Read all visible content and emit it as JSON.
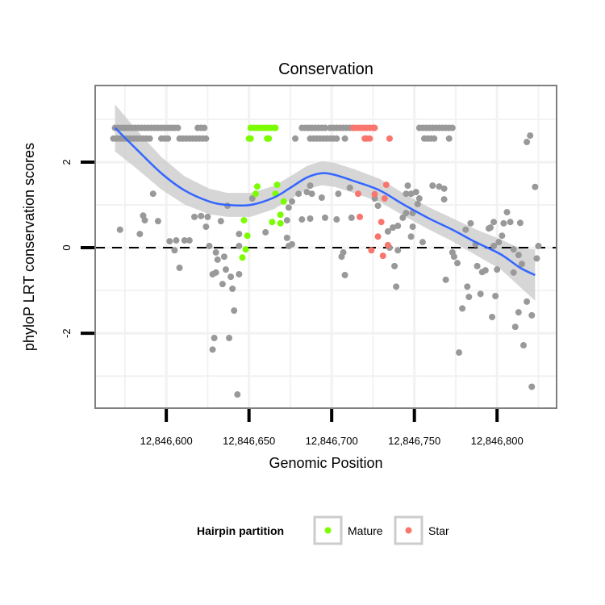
{
  "chart_data": {
    "type": "scatter",
    "title": "Conservation",
    "xlabel": "Genomic Position",
    "ylabel": "phyloP LRT conservation scores",
    "xlim": [
      12846557,
      12846836
    ],
    "ylim": [
      -3.75,
      3.79
    ],
    "x_ticks": [
      12846600,
      12846650,
      12846700,
      12846750,
      12846800
    ],
    "x_tick_labels": [
      "12,846,600",
      "12,846,650",
      "12,846,700",
      "12,846,750",
      "12,846,800"
    ],
    "y_ticks": [
      -2,
      0,
      2
    ],
    "y_tick_labels": [
      "-2",
      "0",
      "2"
    ],
    "grid": true,
    "reference_line": {
      "y": 0,
      "style": "dashed"
    },
    "legend": {
      "title": "Hairpin partition",
      "position": "bottom",
      "entries": [
        {
          "label": "Mature",
          "color": "#7CFC00"
        },
        {
          "label": "Star",
          "color": "#F8766D"
        }
      ]
    },
    "series": [
      {
        "name": "Other",
        "color": "#999999",
        "rows": [
          {
            "y": 2.8,
            "x": [
              12846569,
              12846571,
              12846573,
              12846575,
              12846577,
              12846579,
              12846581,
              12846583,
              12846585,
              12846587,
              12846589,
              12846591,
              12846593,
              12846595,
              12846597,
              12846599,
              12846601,
              12846603,
              12846605,
              12846607,
              12846619,
              12846621,
              12846623,
              12846682,
              12846684,
              12846686,
              12846688,
              12846690,
              12846692,
              12846694,
              12846696,
              12846699,
              12846701,
              12846703,
              12846705,
              12846707,
              12846709,
              12846711,
              12846713,
              12846753,
              12846755,
              12846757,
              12846759,
              12846761,
              12846763,
              12846765,
              12846767,
              12846769,
              12846771,
              12846773
            ]
          },
          {
            "y": 2.55,
            "x": [
              12846568,
              12846570,
              12846572,
              12846574,
              12846576,
              12846578,
              12846580,
              12846582,
              12846584,
              12846586,
              12846588,
              12846590,
              12846597,
              12846599,
              12846601,
              12846608,
              12846610,
              12846612,
              12846614,
              12846616,
              12846618,
              12846620,
              12846622,
              12846624,
              12846678,
              12846687,
              12846689,
              12846691,
              12846693,
              12846695,
              12846697,
              12846699,
              12846701,
              12846703,
              12846708,
              12846756,
              12846758,
              12846760,
              12846762,
              12846771
            ]
          }
        ],
        "points": [
          [
            12846572,
            0.42
          ],
          [
            12846584,
            0.32
          ],
          [
            12846586,
            0.75
          ],
          [
            12846587,
            0.64
          ],
          [
            12846592,
            1.26
          ],
          [
            12846595,
            0.62
          ],
          [
            12846602,
            0.15
          ],
          [
            12846605,
            -0.06
          ],
          [
            12846606,
            0.17
          ],
          [
            12846608,
            -0.47
          ],
          [
            12846611,
            0.17
          ],
          [
            12846614,
            0.17
          ],
          [
            12846617,
            0.72
          ],
          [
            12846621,
            0.74
          ],
          [
            12846625,
            0.72
          ],
          [
            12846624,
            0.49
          ],
          [
            12846626,
            0.04
          ],
          [
            12846628,
            -0.62
          ],
          [
            12846630,
            -0.58
          ],
          [
            12846630,
            -0.11
          ],
          [
            12846631,
            -0.28
          ],
          [
            12846634,
            -0.85
          ],
          [
            12846635,
            -0.21
          ],
          [
            12846633,
            0.62
          ],
          [
            12846637,
            0.98
          ],
          [
            12846636,
            -0.51
          ],
          [
            12846639,
            -0.68
          ],
          [
            12846640,
            -0.96
          ],
          [
            12846641,
            -1.47
          ],
          [
            12846629,
            -2.11
          ],
          [
            12846628,
            -2.38
          ],
          [
            12846638,
            -2.11
          ],
          [
            12846643,
            -3.43
          ],
          [
            12846644,
            0.32
          ],
          [
            12846644,
            0.04
          ],
          [
            12846644,
            -0.62
          ],
          [
            12846652,
            1.15
          ],
          [
            12846660,
            0.36
          ],
          [
            12846674,
            0.94
          ],
          [
            12846673,
            0.23
          ],
          [
            12846676,
            0.08
          ],
          [
            12846674,
            0.04
          ],
          [
            12846673,
            0.64
          ],
          [
            12846676,
            1.08
          ],
          [
            12846682,
            0.66
          ],
          [
            12846687,
            0.68
          ],
          [
            12846680,
            1.26
          ],
          [
            12846685,
            1.3
          ],
          [
            12846688,
            1.26
          ],
          [
            12846687,
            1.45
          ],
          [
            12846694,
            1.17
          ],
          [
            12846696,
            0.7
          ],
          [
            12846704,
            1.26
          ],
          [
            12846703,
            0.66
          ],
          [
            12846706,
            -0.21
          ],
          [
            12846708,
            -0.64
          ],
          [
            12846707,
            -0.11
          ],
          [
            12846711,
            1.4
          ],
          [
            12846712,
            0.7
          ],
          [
            12846726,
            1.15
          ],
          [
            12846728,
            0.98
          ],
          [
            12846734,
            0.38
          ],
          [
            12846735,
            0.0
          ],
          [
            12846737,
            0.47
          ],
          [
            12846738,
            -0.43
          ],
          [
            12846739,
            -0.91
          ],
          [
            12846740,
            -0.06
          ],
          [
            12846740,
            0.51
          ],
          [
            12846743,
            0.7
          ],
          [
            12846745,
            0.81
          ],
          [
            12846745,
            1.26
          ],
          [
            12846746,
            1.45
          ],
          [
            12846748,
            1.26
          ],
          [
            12846751,
            1.3
          ],
          [
            12846753,
            1.15
          ],
          [
            12846752,
            1.02
          ],
          [
            12846755,
            0.13
          ],
          [
            12846749,
            0.81
          ],
          [
            12846749,
            0.49
          ],
          [
            12846748,
            0.26
          ],
          [
            12846761,
            1.45
          ],
          [
            12846765,
            1.43
          ],
          [
            12846768,
            1.13
          ],
          [
            12846768,
            1.38
          ],
          [
            12846769,
            -0.75
          ],
          [
            12846773,
            -0.11
          ],
          [
            12846774,
            -0.21
          ],
          [
            12846776,
            -0.36
          ],
          [
            12846777,
            -2.45
          ],
          [
            12846779,
            -1.42
          ],
          [
            12846781,
            0.42
          ],
          [
            12846782,
            -0.91
          ],
          [
            12846783,
            -1.15
          ],
          [
            12846784,
            0.57
          ],
          [
            12846787,
            0.08
          ],
          [
            12846788,
            -0.43
          ],
          [
            12846790,
            -1.08
          ],
          [
            12846791,
            -0.57
          ],
          [
            12846793,
            -0.53
          ],
          [
            12846795,
            0.45
          ],
          [
            12846796,
            0.47
          ],
          [
            12846797,
            -1.62
          ],
          [
            12846798,
            0.04
          ],
          [
            12846799,
            -1.13
          ],
          [
            12846798,
            0.6
          ],
          [
            12846800,
            -0.51
          ],
          [
            12846801,
            0.13
          ],
          [
            12846803,
            0.28
          ],
          [
            12846804,
            0.57
          ],
          [
            12846806,
            0.83
          ],
          [
            12846808,
            0.6
          ],
          [
            12846810,
            -0.04
          ],
          [
            12846810,
            -0.58
          ],
          [
            12846811,
            -1.85
          ],
          [
            12846813,
            -0.17
          ],
          [
            12846813,
            -1.51
          ],
          [
            12846814,
            0.58
          ],
          [
            12846815,
            -0.38
          ],
          [
            12846816,
            -2.28
          ],
          [
            12846818,
            -1.26
          ],
          [
            12846818,
            2.47
          ],
          [
            12846820,
            2.62
          ],
          [
            12846821,
            -1.58
          ],
          [
            12846821,
            -3.25
          ],
          [
            12846823,
            1.42
          ],
          [
            12846824,
            -0.25
          ],
          [
            12846825,
            0.04
          ]
        ]
      },
      {
        "name": "Mature",
        "color": "#7CFC00",
        "rows": [
          {
            "y": 2.8,
            "x": [
              12846651,
              12846653,
              12846655,
              12846657,
              12846659,
              12846661,
              12846663,
              12846665,
              12846666
            ]
          },
          {
            "y": 2.55,
            "x": [
              12846650,
              12846651,
              12846661,
              12846662
            ]
          }
        ],
        "points": [
          [
            12846655,
            1.43
          ],
          [
            12846654,
            1.26
          ],
          [
            12846667,
            1.47
          ],
          [
            12846666,
            1.26
          ],
          [
            12846671,
            1.08
          ],
          [
            12846669,
            0.77
          ],
          [
            12846664,
            0.6
          ],
          [
            12846669,
            0.57
          ],
          [
            12846647,
            0.64
          ],
          [
            12846649,
            0.28
          ],
          [
            12846648,
            -0.04
          ],
          [
            12846646,
            -0.23
          ]
        ]
      },
      {
        "name": "Star",
        "color": "#F8766D",
        "rows": [
          {
            "y": 2.8,
            "x": [
              12846713,
              12846715,
              12846717,
              12846719,
              12846721,
              12846723,
              12846725,
              12846726
            ]
          },
          {
            "y": 2.55,
            "x": [
              12846720,
              12846721,
              12846723,
              12846735
            ]
          }
        ],
        "points": [
          [
            12846716,
            1.26
          ],
          [
            12846733,
            1.47
          ],
          [
            12846726,
            1.25
          ],
          [
            12846732,
            1.15
          ],
          [
            12846717,
            0.72
          ],
          [
            12846730,
            0.6
          ],
          [
            12846728,
            0.26
          ],
          [
            12846734,
            0.06
          ],
          [
            12846724,
            -0.06
          ],
          [
            12846731,
            -0.19
          ]
        ]
      }
    ],
    "smooth": {
      "color": "#3366FF",
      "band_color": "#CCCCCC",
      "x": [
        12846569,
        12846582,
        12846597,
        12846611,
        12846626,
        12846637,
        12846651,
        12846665,
        12846675,
        12846685,
        12846694,
        12846702,
        12846714,
        12846729,
        12846743,
        12846758,
        12846773,
        12846787,
        12846802,
        12846814,
        12846823
      ],
      "y": [
        2.8,
        2.3,
        1.74,
        1.34,
        1.08,
        1.0,
        1.0,
        1.17,
        1.4,
        1.64,
        1.74,
        1.7,
        1.55,
        1.34,
        1.02,
        0.7,
        0.42,
        0.13,
        -0.15,
        -0.47,
        -0.64
      ],
      "se": [
        0.55,
        0.45,
        0.38,
        0.33,
        0.3,
        0.28,
        0.28,
        0.27,
        0.27,
        0.27,
        0.28,
        0.28,
        0.28,
        0.27,
        0.26,
        0.26,
        0.27,
        0.3,
        0.35,
        0.45,
        0.6
      ]
    }
  }
}
